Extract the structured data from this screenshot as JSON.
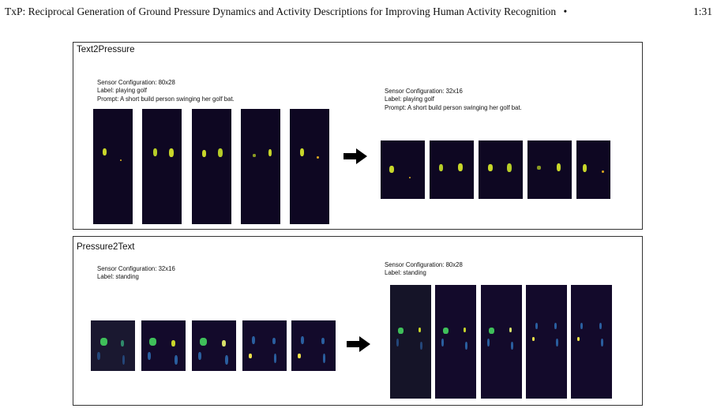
{
  "header": {
    "title": "TxP: Reciprocal Generation of Ground Pressure Dynamics and Activity Descriptions for Improving Human Activity Recognition",
    "separator": "•",
    "page": "1:31"
  },
  "text2pressure": {
    "title": "Text2Pressure",
    "left_info": [
      "Sensor Configuration: 80x28",
      "Label: playing golf",
      "Prompt: A short build person swinging her golf bat."
    ],
    "right_info": [
      "Sensor Configuration: 32x16",
      "Label: playing golf",
      "Prompt: A short build person swinging her golf bat."
    ]
  },
  "pressure2text": {
    "title": "Pressure2Text",
    "left_info": [
      "Sensor Configuration: 32x16",
      "Label: standing"
    ],
    "right_info": [
      "Sensor Configuration: 80x28",
      "Label: standing"
    ]
  },
  "colors": {
    "frame_bg": "#0e0722",
    "blob_yellow": "#c8d62a",
    "blob_green": "#3fbf5a",
    "blob_blue": "#2a5fa0"
  },
  "icons": {
    "arrow": "right-arrow-icon"
  }
}
